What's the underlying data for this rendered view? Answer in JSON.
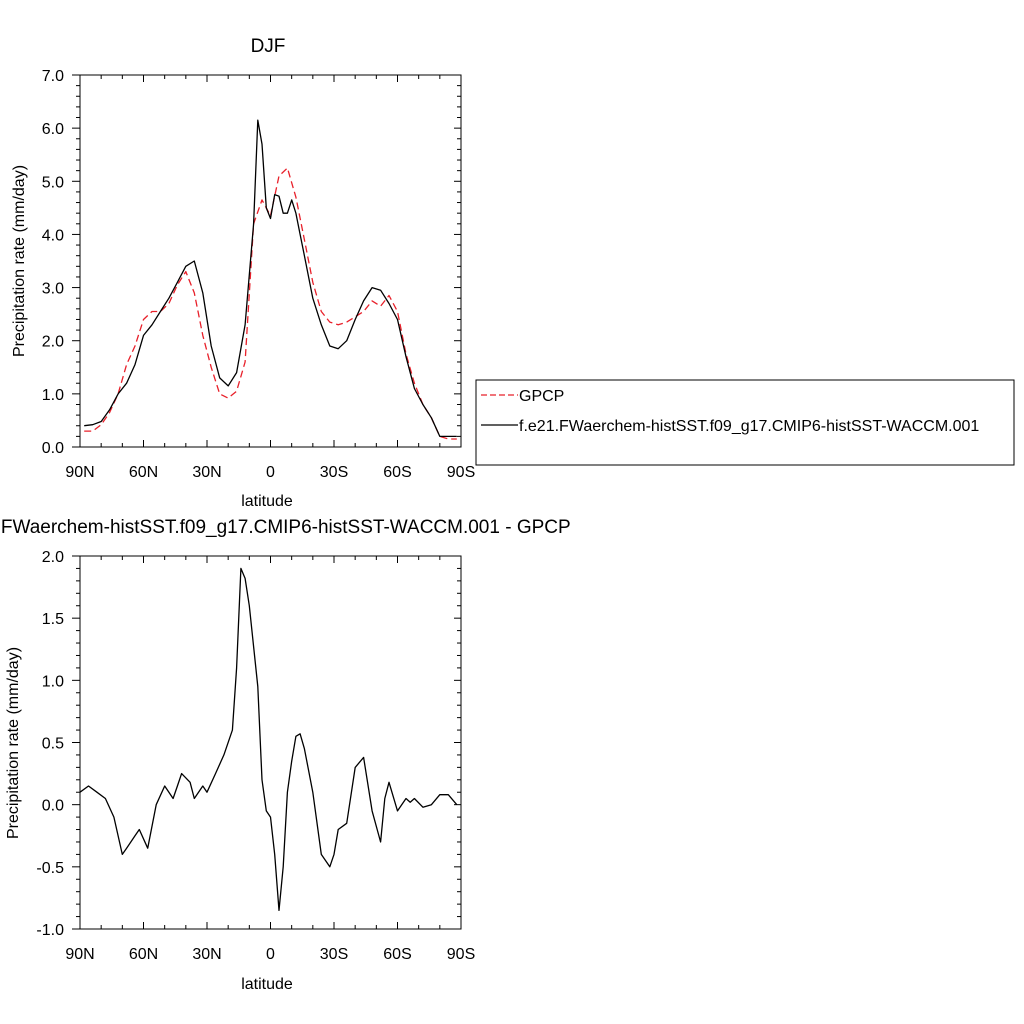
{
  "chart_data": [
    {
      "type": "line",
      "title": "DJF",
      "xlabel": "latitude",
      "ylabel": "Precipitation rate (mm/day)",
      "xlim": [
        90,
        -90
      ],
      "ylim": [
        0,
        7
      ],
      "xticks": [
        90,
        60,
        30,
        0,
        -30,
        -60,
        -90
      ],
      "xtick_labels": [
        "90N",
        "60N",
        "30N",
        "0",
        "30S",
        "60S",
        "90S"
      ],
      "yticks": [
        0,
        1,
        2,
        3,
        4,
        5,
        6,
        7
      ],
      "ytick_labels": [
        "0.0",
        "1.0",
        "2.0",
        "3.0",
        "4.0",
        "5.0",
        "6.0",
        "7.0"
      ],
      "legend_position": "right",
      "series": [
        {
          "name": "GPCP",
          "color": "#e8202a",
          "dash": "dashed",
          "x": [
            88,
            84,
            80,
            76,
            72,
            68,
            64,
            60,
            56,
            52,
            48,
            44,
            40,
            36,
            32,
            28,
            24,
            20,
            16,
            12,
            8,
            4,
            0,
            -4,
            -8,
            -12,
            -16,
            -20,
            -24,
            -28,
            -32,
            -36,
            -40,
            -44,
            -48,
            -52,
            -56,
            -60,
            -64,
            -68,
            -72,
            -76,
            -80,
            -84,
            -88
          ],
          "y": [
            0.3,
            0.3,
            0.42,
            0.65,
            1.0,
            1.55,
            1.9,
            2.4,
            2.55,
            2.55,
            2.7,
            3.05,
            3.3,
            2.9,
            2.1,
            1.5,
            1.0,
            0.92,
            1.05,
            1.6,
            4.2,
            4.65,
            4.35,
            5.1,
            5.25,
            4.7,
            3.9,
            3.1,
            2.55,
            2.35,
            2.3,
            2.35,
            2.45,
            2.55,
            2.75,
            2.65,
            2.85,
            2.55,
            1.75,
            1.2,
            0.8,
            0.55,
            0.2,
            0.15,
            0.15
          ]
        },
        {
          "name": "f.e21.FWaerchem-histSST.f09_g17.CMIP6-histSST-WACCM.001",
          "color": "#000000",
          "dash": "solid",
          "x": [
            88,
            84,
            80,
            76,
            72,
            68,
            64,
            60,
            56,
            52,
            48,
            44,
            40,
            36,
            32,
            28,
            24,
            20,
            16,
            12,
            8,
            6,
            4,
            2,
            0,
            -2,
            -4,
            -6,
            -8,
            -10,
            -12,
            -14,
            -16,
            -20,
            -24,
            -28,
            -32,
            -36,
            -40,
            -44,
            -48,
            -52,
            -56,
            -60,
            -64,
            -68,
            -72,
            -76,
            -80,
            -84,
            -88
          ],
          "y": [
            0.4,
            0.42,
            0.48,
            0.7,
            1.0,
            1.2,
            1.55,
            2.1,
            2.3,
            2.55,
            2.8,
            3.1,
            3.4,
            3.5,
            2.9,
            1.9,
            1.3,
            1.15,
            1.4,
            2.3,
            4.2,
            6.15,
            5.7,
            4.5,
            4.3,
            4.75,
            4.72,
            4.4,
            4.4,
            4.65,
            4.4,
            4.0,
            3.6,
            2.8,
            2.3,
            1.9,
            1.85,
            2.0,
            2.4,
            2.75,
            3.0,
            2.95,
            2.7,
            2.4,
            1.7,
            1.1,
            0.8,
            0.55,
            0.2,
            0.2,
            0.2
          ]
        }
      ]
    },
    {
      "type": "line",
      "title": "f.e21.FWaerchem-histSST.f09_g17.CMIP6-histSST-WACCM.001 - GPCP",
      "xlabel": "latitude",
      "ylabel": "Precipitation rate (mm/day)",
      "xlim": [
        90,
        -90
      ],
      "ylim": [
        -1,
        2
      ],
      "xticks": [
        90,
        60,
        30,
        0,
        -30,
        -60,
        -90
      ],
      "xtick_labels": [
        "90N",
        "60N",
        "30N",
        "0",
        "30S",
        "60S",
        "90S"
      ],
      "yticks": [
        -1,
        -0.5,
        0,
        0.5,
        1,
        1.5,
        2
      ],
      "ytick_labels": [
        "-1.0",
        "-0.5",
        "0.0",
        "0.5",
        "1.0",
        "1.5",
        "2.0"
      ],
      "series": [
        {
          "color": "#000000",
          "dash": "solid",
          "x": [
            90,
            86,
            82,
            78,
            74,
            70,
            68,
            64,
            62,
            58,
            54,
            50,
            46,
            44,
            42,
            38,
            36,
            32,
            30,
            26,
            22,
            18,
            16,
            14,
            12,
            10,
            6,
            4,
            2,
            0,
            -2,
            -4,
            -6,
            -8,
            -10,
            -12,
            -14,
            -16,
            -20,
            -24,
            -28,
            -30,
            -32,
            -36,
            -40,
            -44,
            -48,
            -52,
            -54,
            -56,
            -60,
            -64,
            -66,
            -68,
            -72,
            -76,
            -80,
            -84,
            -88
          ],
          "y": [
            0.1,
            0.15,
            0.1,
            0.05,
            -0.1,
            -0.4,
            -0.35,
            -0.25,
            -0.2,
            -0.35,
            0.0,
            0.15,
            0.05,
            0.15,
            0.25,
            0.18,
            0.05,
            0.15,
            0.1,
            0.25,
            0.4,
            0.6,
            1.1,
            1.9,
            1.82,
            1.6,
            0.95,
            0.2,
            -0.05,
            -0.1,
            -0.4,
            -0.85,
            -0.5,
            0.1,
            0.35,
            0.55,
            0.57,
            0.45,
            0.1,
            -0.4,
            -0.5,
            -0.4,
            -0.2,
            -0.15,
            0.3,
            0.38,
            -0.05,
            -0.3,
            0.05,
            0.18,
            -0.05,
            0.05,
            0.02,
            0.05,
            -0.02,
            0.0,
            0.08,
            0.08,
            0.0
          ]
        }
      ]
    }
  ]
}
